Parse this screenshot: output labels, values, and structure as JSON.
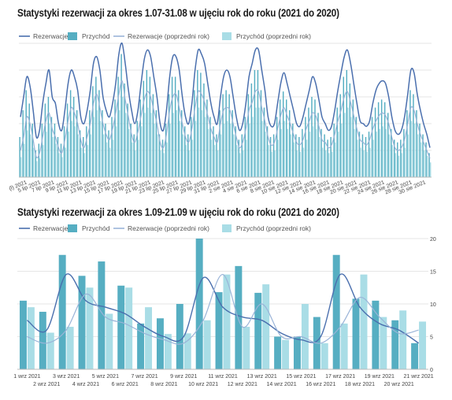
{
  "chart_data": [
    {
      "type": "bar",
      "title": "Statystyki rezerwacji za okres 1.07-31.08 w ujęciu rok do roku (2021 do 2020)",
      "legend": [
        "Rezerwacje",
        "Przychód",
        "Rezerwacje (poprzedni rok)",
        "Przychód (poprzedni rok)"
      ],
      "legend_position": "top-left",
      "grid": true,
      "ylim": [
        0,
        100
      ],
      "x_tick_labels": [
        "(l) 2021",
        "5 lip 2021",
        "7 lip 2021",
        "9 lip 2021",
        "11 lip 2021",
        "13 lip 2021",
        "15 lip 2021",
        "17 lip 2021",
        "19 lip 2021",
        "21 lip 2021",
        "23 lip 2021",
        "25 lip 2021",
        "27 lip 2021",
        "29 lip 2021",
        "31 lip 2021",
        "2 sie 2021",
        "4 sie 2021",
        "6 sie 2021",
        "8 sie 2021",
        "10 sie 2021",
        "12 sie 2021",
        "14 sie 2021",
        "16 sie 2021",
        "18 sie 2021",
        "20 sie 2021",
        "22 sie 2021",
        "24 sie 2021",
        "26 sie 2021",
        "28 sie 2021",
        "30 sie 2021"
      ],
      "series": [
        {
          "name": "Rezerwacje",
          "type": "line",
          "color": "#4a6fae",
          "values": [
            45,
            60,
            75,
            68,
            50,
            30,
            35,
            55,
            70,
            80,
            60,
            55,
            40,
            35,
            50,
            70,
            80,
            75,
            65,
            45,
            40,
            50,
            65,
            85,
            90,
            80,
            60,
            50,
            45,
            55,
            70,
            92,
            100,
            85,
            65,
            50,
            40,
            50,
            70,
            88,
            95,
            90,
            75,
            60,
            40,
            35,
            50,
            75,
            90,
            90,
            80,
            60,
            45,
            40,
            55,
            80,
            95,
            92,
            85,
            70,
            55,
            45,
            40,
            60,
            75,
            80,
            75,
            60,
            45,
            35,
            40,
            55,
            75,
            85,
            95,
            95,
            80,
            65,
            45,
            38,
            40,
            55,
            70,
            78,
            70,
            60,
            50,
            40,
            38,
            45,
            55,
            65,
            75,
            70,
            58,
            45,
            40,
            35,
            38,
            50,
            65,
            78,
            90,
            95,
            85,
            70,
            55,
            42,
            40,
            38,
            42,
            55,
            65,
            70,
            72,
            70,
            60,
            45,
            35,
            32,
            35,
            45,
            62,
            80,
            78,
            62,
            50,
            40,
            32,
            22
          ]
        },
        {
          "name": "Przychód",
          "type": "bar",
          "color": "#56aec2",
          "values": [
            30,
            50,
            65,
            55,
            40,
            20,
            25,
            40,
            55,
            60,
            45,
            40,
            30,
            25,
            38,
            55,
            65,
            60,
            50,
            35,
            30,
            38,
            50,
            68,
            75,
            65,
            50,
            40,
            35,
            45,
            58,
            75,
            92,
            70,
            55,
            40,
            32,
            42,
            58,
            72,
            80,
            75,
            62,
            50,
            32,
            28,
            40,
            62,
            75,
            75,
            65,
            50,
            38,
            32,
            45,
            65,
            80,
            78,
            70,
            58,
            45,
            38,
            32,
            50,
            62,
            65,
            62,
            50,
            38,
            28,
            32,
            45,
            62,
            70,
            80,
            80,
            65,
            52,
            38,
            30,
            32,
            45,
            58,
            64,
            58,
            50,
            40,
            32,
            30,
            36,
            45,
            52,
            60,
            58,
            48,
            36,
            32,
            28,
            30,
            40,
            52,
            62,
            75,
            80,
            70,
            58,
            45,
            34,
            32,
            30,
            34,
            45,
            52,
            56,
            58,
            56,
            48,
            36,
            28,
            26,
            28,
            36,
            50,
            65,
            62,
            50,
            40,
            32,
            26,
            18
          ]
        },
        {
          "name": "Rezerwacje (poprzedni rok)",
          "type": "line",
          "color": "#9ab4d8",
          "values": [
            20,
            30,
            45,
            40,
            28,
            15,
            18,
            30,
            42,
            48,
            36,
            30,
            22,
            18,
            28,
            42,
            52,
            48,
            40,
            28,
            22,
            30,
            40,
            55,
            62,
            52,
            40,
            32,
            28,
            36,
            48,
            62,
            72,
            58,
            45,
            32,
            26,
            34,
            46,
            58,
            64,
            60,
            50,
            40,
            26,
            22,
            32,
            50,
            60,
            62,
            52,
            40,
            30,
            26,
            36,
            52,
            64,
            62,
            56,
            46,
            36,
            30,
            26,
            40,
            50,
            52,
            50,
            40,
            30,
            22,
            26,
            36,
            50,
            56,
            64,
            64,
            52,
            42,
            30,
            24,
            26,
            36,
            46,
            52,
            46,
            40,
            32,
            26,
            24,
            28,
            36,
            42,
            48,
            46,
            38,
            28,
            26,
            22,
            24,
            32,
            42,
            50,
            60,
            64,
            56,
            46,
            36,
            28,
            26,
            24,
            28,
            36,
            42,
            46,
            48,
            46,
            40,
            30,
            22,
            20,
            22,
            28,
            40,
            52,
            50,
            40,
            32,
            26,
            20,
            14
          ]
        },
        {
          "name": "Przychód (poprzedni rok)",
          "type": "bar",
          "color": "#a9dde6",
          "values": [
            15,
            25,
            35,
            32,
            22,
            12,
            14,
            24,
            34,
            40,
            30,
            25,
            18,
            15,
            22,
            34,
            42,
            38,
            32,
            22,
            18,
            24,
            32,
            45,
            50,
            42,
            32,
            26,
            22,
            28,
            38,
            50,
            60,
            48,
            36,
            26,
            20,
            28,
            38,
            48,
            52,
            48,
            40,
            32,
            20,
            18,
            26,
            40,
            48,
            50,
            42,
            32,
            24,
            20,
            28,
            42,
            52,
            50,
            45,
            36,
            28,
            24,
            20,
            32,
            40,
            42,
            40,
            32,
            24,
            18,
            20,
            28,
            40,
            45,
            52,
            52,
            42,
            34,
            24,
            19,
            20,
            28,
            36,
            42,
            36,
            32,
            26,
            20,
            19,
            22,
            28,
            34,
            38,
            36,
            30,
            22,
            20,
            18,
            19,
            26,
            34,
            40,
            48,
            52,
            45,
            36,
            28,
            22,
            20,
            19,
            22,
            28,
            34,
            36,
            38,
            36,
            32,
            24,
            18,
            16,
            18,
            22,
            32,
            42,
            40,
            32,
            26,
            20,
            16,
            11
          ]
        }
      ]
    },
    {
      "type": "bar",
      "title": "Statystyki rezerwacji za okres 1.09-21.09 w ujęciu rok do roku (2021 do 2020)",
      "legend": [
        "Rezerwacje",
        "Przychód",
        "Rezerwacje (poprzedni rok)",
        "Przychód (poprzedni rok)"
      ],
      "legend_position": "top-left",
      "grid": true,
      "ylim": [
        0,
        20
      ],
      "y_tick_labels": [
        "0",
        "5",
        "10",
        "15",
        "20"
      ],
      "categories": [
        "1 wrz 2021",
        "2 wrz 2021",
        "3 wrz 2021",
        "4 wrz 2021",
        "5 wrz 2021",
        "6 wrz 2021",
        "7 wrz 2021",
        "8 wrz 2021",
        "9 wrz 2021",
        "10 wrz 2021",
        "11 wrz 2021",
        "12 wrz 2021",
        "13 wrz 2021",
        "14 wrz 2021",
        "15 wrz 2021",
        "16 wrz 2021",
        "17 wrz 2021",
        "18 wrz 2021",
        "19 wrz 2021",
        "20 wrz 2021",
        "21 wrz 2021"
      ],
      "series": [
        {
          "name": "Rezerwacje",
          "type": "line",
          "color": "#4a6fae",
          "values": [
            7.5,
            6.0,
            14.5,
            10.5,
            9.5,
            8.5,
            6.5,
            5.0,
            5.0,
            14.0,
            9.5,
            8.0,
            7.5,
            5.5,
            4.5,
            5.0,
            14.5,
            9.5,
            7.0,
            6.0,
            4.0
          ]
        },
        {
          "name": "Przychód",
          "type": "bar",
          "color": "#56aec2",
          "values": [
            10.5,
            8.8,
            17.5,
            14.3,
            16.5,
            12.8,
            7.0,
            7.8,
            10.0,
            20.0,
            11.8,
            15.8,
            11.7,
            5.0,
            5.0,
            8.0,
            17.5,
            10.8,
            10.5,
            7.5,
            4.0
          ]
        },
        {
          "name": "Rezerwacje (poprzedni rok)",
          "type": "line",
          "color": "#9ab4d8",
          "values": [
            5.0,
            4.0,
            6.0,
            11.5,
            8.0,
            7.0,
            5.5,
            4.5,
            4.0,
            7.5,
            14.5,
            6.5,
            10.0,
            5.0,
            5.0,
            4.0,
            6.5,
            11.0,
            8.0,
            5.5,
            6.0
          ]
        },
        {
          "name": "Przychód (poprzedni rok)",
          "type": "bar",
          "color": "#a9dde6",
          "values": [
            9.5,
            5.6,
            6.5,
            12.5,
            8.5,
            12.5,
            9.5,
            5.4,
            5.5,
            7.5,
            14.5,
            6.5,
            13.0,
            4.5,
            10.0,
            4.0,
            7.0,
            14.5,
            8.0,
            9.0,
            7.3
          ]
        }
      ]
    }
  ]
}
